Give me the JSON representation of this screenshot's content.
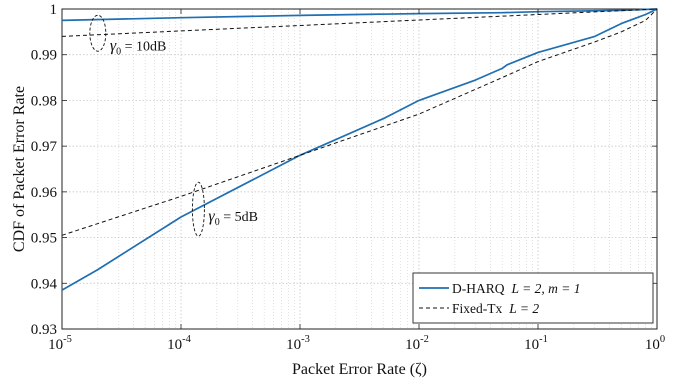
{
  "chart_data": {
    "type": "line",
    "xlabel": "Packet Error Rate (ζ)",
    "ylabel": "CDF of Packet Error Rate",
    "x_scale": "log",
    "xlim": [
      1e-05,
      1
    ],
    "ylim": [
      0.93,
      1
    ],
    "grid": true,
    "legend_position": "bottom-right",
    "x_ticks": [
      {
        "value": 1e-05,
        "base": "10",
        "exp": "-5"
      },
      {
        "value": 0.0001,
        "base": "10",
        "exp": "-4"
      },
      {
        "value": 0.001,
        "base": "10",
        "exp": "-3"
      },
      {
        "value": 0.01,
        "base": "10",
        "exp": "-2"
      },
      {
        "value": 0.1,
        "base": "10",
        "exp": "-1"
      },
      {
        "value": 1,
        "base": "10",
        "exp": "0"
      }
    ],
    "y_ticks": [
      {
        "value": 0.93,
        "label": "0.93"
      },
      {
        "value": 0.94,
        "label": "0.94"
      },
      {
        "value": 0.95,
        "label": "0.95"
      },
      {
        "value": 0.96,
        "label": "0.96"
      },
      {
        "value": 0.97,
        "label": "0.97"
      },
      {
        "value": 0.98,
        "label": "0.98"
      },
      {
        "value": 0.99,
        "label": "0.99"
      },
      {
        "value": 1,
        "label": "1"
      }
    ],
    "series": [
      {
        "name": "D-HARQ",
        "legend_params": "L = 2, m = 1",
        "color": "#1f6fb2",
        "style": "solid",
        "groups": [
          {
            "condition": "γ₀ = 10dB",
            "x": [
              1e-05,
              0.0001,
              0.001,
              0.01,
              0.05,
              0.1,
              0.5,
              1
            ],
            "y": [
              0.9975,
              0.9981,
              0.9986,
              0.999,
              0.9992,
              0.9994,
              0.9997,
              1.0
            ]
          },
          {
            "condition": "γ₀ = 5dB",
            "x": [
              1e-05,
              2e-05,
              0.0001,
              0.001,
              0.005,
              0.01,
              0.03,
              0.05,
              0.055,
              0.1,
              0.3,
              0.5,
              0.8,
              1
            ],
            "y": [
              0.9385,
              0.943,
              0.9545,
              0.968,
              0.976,
              0.98,
              0.9845,
              0.987,
              0.9878,
              0.9905,
              0.994,
              0.9968,
              0.9988,
              1.0
            ]
          }
        ]
      },
      {
        "name": "Fixed-Tx",
        "legend_params": "L = 2",
        "color": "#111111",
        "style": "dashed",
        "groups": [
          {
            "condition": "γ₀ = 10dB",
            "x": [
              1e-05,
              0.0001,
              0.001,
              0.01,
              0.1,
              1
            ],
            "y": [
              0.994,
              0.9952,
              0.9964,
              0.9976,
              0.9988,
              1.0
            ]
          },
          {
            "condition": "γ₀ = 5dB",
            "x": [
              1e-05,
              0.0001,
              0.001,
              0.01,
              0.05,
              0.1,
              0.3,
              0.5,
              0.8,
              1
            ],
            "y": [
              0.9505,
              0.959,
              0.968,
              0.977,
              0.985,
              0.9885,
              0.9928,
              0.995,
              0.9975,
              1.0
            ]
          }
        ]
      }
    ],
    "annotations": [
      {
        "symbol": "γ",
        "sub": "0",
        "text": " = 10dB",
        "x": 2e-05,
        "y": 0.9945
      },
      {
        "symbol": "γ",
        "sub": "0",
        "text": " = 5dB",
        "x": 0.00014,
        "y": 0.9565
      }
    ]
  }
}
